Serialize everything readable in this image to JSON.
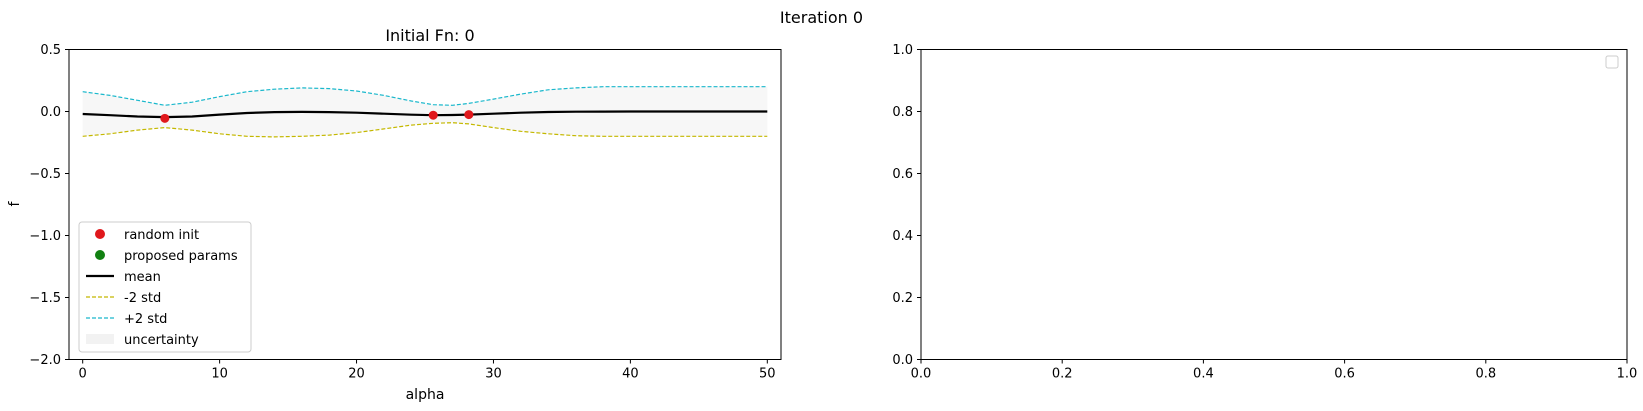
{
  "figure": {
    "suptitle": "Iteration 0"
  },
  "chart_data": [
    {
      "type": "line",
      "title": "Initial Fn: 0",
      "xlabel": "alpha",
      "ylabel": "f",
      "xlim": [
        -1,
        51
      ],
      "ylim": [
        -2.0,
        0.5
      ],
      "xticks": [
        0,
        10,
        20,
        30,
        40,
        50
      ],
      "xtick_labels": [
        "0",
        "10",
        "20",
        "30",
        "40",
        "50"
      ],
      "yticks": [
        0.5,
        0.0,
        -0.5,
        -1.0,
        -1.5,
        -2.0
      ],
      "ytick_labels": [
        "0.5",
        "0.0",
        "−0.5",
        "−1.0",
        "−1.5",
        "−2.0"
      ],
      "grid": false,
      "legend_position": "lower-left",
      "x": [
        0,
        2,
        4,
        6,
        8,
        10,
        12,
        14,
        16,
        18,
        20,
        22,
        24,
        25.6,
        27,
        28.2,
        30,
        32,
        34,
        36,
        38,
        40,
        42,
        44,
        46,
        48,
        50
      ],
      "series": [
        {
          "name": "mean",
          "style": "solid",
          "color": "#000000",
          "values": [
            -0.02,
            -0.03,
            -0.04,
            -0.045,
            -0.04,
            -0.025,
            -0.012,
            -0.005,
            -0.003,
            -0.005,
            -0.01,
            -0.018,
            -0.026,
            -0.03,
            -0.028,
            -0.025,
            -0.018,
            -0.01,
            -0.004,
            -0.002,
            -0.001,
            0,
            0,
            0,
            0,
            0,
            0
          ]
        },
        {
          "name": "-2 std",
          "style": "dashed",
          "color": "#c4b800",
          "values": [
            -0.2,
            -0.18,
            -0.15,
            -0.13,
            -0.15,
            -0.18,
            -0.2,
            -0.205,
            -0.2,
            -0.19,
            -0.17,
            -0.14,
            -0.11,
            -0.095,
            -0.09,
            -0.1,
            -0.13,
            -0.16,
            -0.18,
            -0.195,
            -0.2,
            -0.2,
            -0.2,
            -0.2,
            -0.2,
            -0.2,
            -0.2
          ]
        },
        {
          "name": "+2 std",
          "style": "dashed",
          "color": "#1ab8cc",
          "values": [
            0.16,
            0.13,
            0.09,
            0.05,
            0.075,
            0.12,
            0.16,
            0.18,
            0.19,
            0.185,
            0.165,
            0.13,
            0.085,
            0.055,
            0.05,
            0.065,
            0.1,
            0.14,
            0.175,
            0.19,
            0.2,
            0.2,
            0.2,
            0.2,
            0.2,
            0.2,
            0.2
          ]
        }
      ],
      "uncertainty": {
        "name": "uncertainty",
        "color": "#f2f2f2"
      },
      "scatter": [
        {
          "name": "random init",
          "color": "#e0181c",
          "points": [
            [
              6.0,
              -0.055
            ],
            [
              25.6,
              -0.03
            ],
            [
              28.2,
              -0.025
            ]
          ]
        },
        {
          "name": "proposed params",
          "color": "#118011",
          "points": []
        }
      ],
      "legend": [
        {
          "label": "random init",
          "kind": "dot",
          "color": "#e0181c"
        },
        {
          "label": "proposed params",
          "kind": "dot",
          "color": "#118011"
        },
        {
          "label": "mean",
          "kind": "line",
          "color": "#000000"
        },
        {
          "label": "-2 std",
          "kind": "dash",
          "color": "#c4b800"
        },
        {
          "label": "+2 std",
          "kind": "dash",
          "color": "#1ab8cc"
        },
        {
          "label": "uncertainty",
          "kind": "patch",
          "color": "#f2f2f2"
        }
      ]
    },
    {
      "type": "line",
      "title": "",
      "xlabel": "",
      "ylabel": "",
      "xlim": [
        0.0,
        1.0
      ],
      "ylim": [
        0.0,
        1.0
      ],
      "xticks": [
        0.0,
        0.2,
        0.4,
        0.6,
        0.8,
        1.0
      ],
      "xtick_labels": [
        "0.0",
        "0.2",
        "0.4",
        "0.6",
        "0.8",
        "1.0"
      ],
      "yticks": [
        0.0,
        0.2,
        0.4,
        0.6,
        0.8,
        1.0
      ],
      "ytick_labels": [
        "0.0",
        "0.2",
        "0.4",
        "0.6",
        "0.8",
        "1.0"
      ],
      "grid": false,
      "legend_position": "top-right",
      "series": []
    }
  ]
}
